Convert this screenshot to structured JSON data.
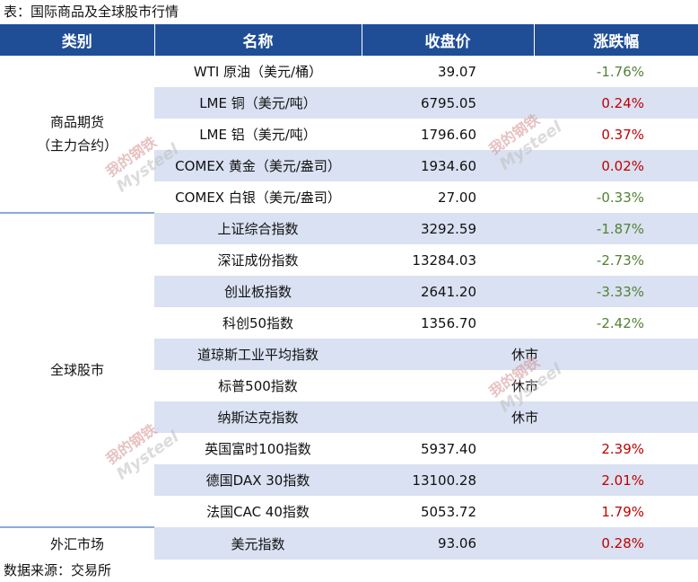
{
  "caption": "表：国际商品及全球股市行情",
  "source": "数据来源：交易所",
  "headers": [
    "类别",
    "名称",
    "收盘价",
    "涨跌幅"
  ],
  "groups": [
    {
      "label": "商品期货\n（主力合约）"
    },
    {
      "label": "全球股市"
    },
    {
      "label": "外汇市场"
    }
  ],
  "rows": [
    {
      "name": "WTI 原油（美元/桶）",
      "close": "39.07",
      "change": "-1.76%",
      "dir": "down"
    },
    {
      "name": "LME 铜（美元/吨）",
      "close": "6795.05",
      "change": "0.24%",
      "dir": "up"
    },
    {
      "name": "LME 铝（美元/吨）",
      "close": "1796.60",
      "change": "0.37%",
      "dir": "up"
    },
    {
      "name": "COMEX 黄金（美元/盎司）",
      "close": "1934.60",
      "change": "0.02%",
      "dir": "up"
    },
    {
      "name": "COMEX 白银（美元/盎司）",
      "close": "27.00",
      "change": "-0.33%",
      "dir": "down"
    },
    {
      "name": "上证综合指数",
      "close": "3292.59",
      "change": "-1.87%",
      "dir": "down"
    },
    {
      "name": "深证成份指数",
      "close": "13284.03",
      "change": "-2.73%",
      "dir": "down"
    },
    {
      "name": "创业板指数",
      "close": "2641.20",
      "change": "-3.33%",
      "dir": "down"
    },
    {
      "name": "科创50指数",
      "close": "1356.70",
      "change": "-2.42%",
      "dir": "down"
    },
    {
      "name": "道琼斯工业平均指数",
      "closed": "休市"
    },
    {
      "name": "标普500指数",
      "closed": "休市"
    },
    {
      "name": "纳斯达克指数",
      "closed": "休市"
    },
    {
      "name": "英国富时100指数",
      "close": "5937.40",
      "change": "2.39%",
      "dir": "up"
    },
    {
      "name": "德国DAX 30指数",
      "close": "13100.28",
      "change": "2.01%",
      "dir": "up"
    },
    {
      "name": "法国CAC 40指数",
      "close": "5053.72",
      "change": "1.79%",
      "dir": "up"
    },
    {
      "name": "美元指数",
      "close": "93.06",
      "change": "0.28%",
      "dir": "up"
    }
  ],
  "colors": {
    "header": "#1f4e97",
    "shade": "#d9e1f2",
    "up": "#c00000",
    "down": "#538135"
  },
  "watermark": {
    "brand": "Mysteel",
    "cn": "我的钢铁"
  }
}
